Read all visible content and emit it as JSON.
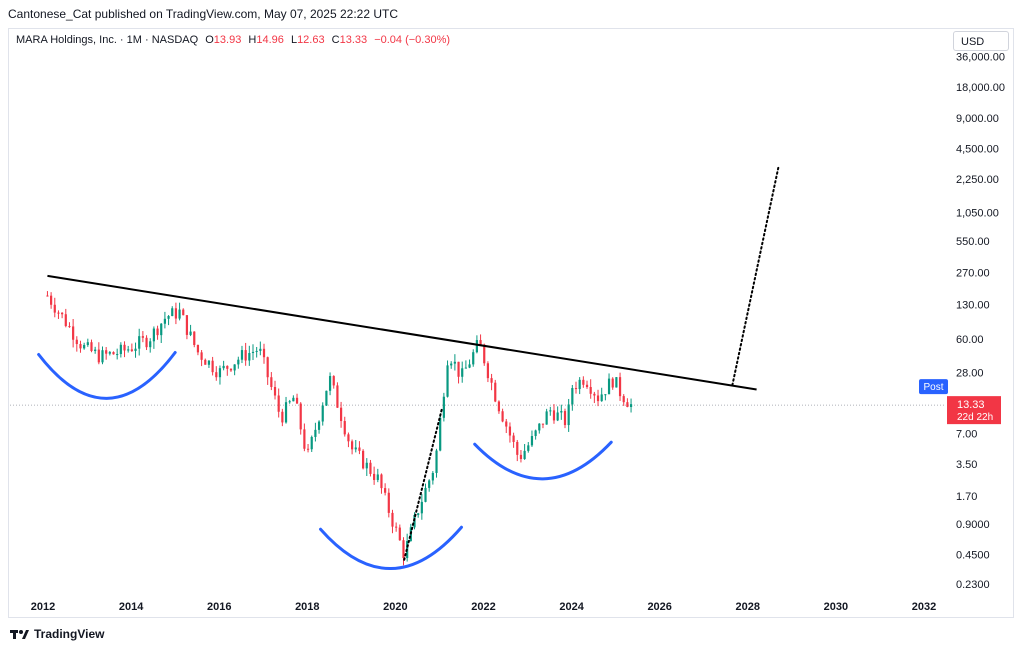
{
  "publish_line": "Cantonese_Cat published on TradingView.com, May 07, 2025 22:22 UTC",
  "legend": {
    "symbol": "MARA Holdings, Inc. · 1M · NASDAQ",
    "open_label": "O",
    "open": "13.93",
    "high_label": "H",
    "high": "14.96",
    "low_label": "L",
    "low": "12.63",
    "close_label": "C",
    "close": "13.33",
    "change": "−0.04 (−0.30%)"
  },
  "currency_button": "USD",
  "footer_logo_text": "TradingView",
  "price_tag": {
    "price": "13.33",
    "countdown": "22d 22h",
    "color": "#f23645"
  },
  "post_badge": {
    "label": "Post",
    "color": "#2962ff"
  },
  "colors": {
    "up": "#089981",
    "down": "#f23645",
    "trendline": "#000000",
    "cups": "#2962ff"
  },
  "chart_data": {
    "type": "candlestick",
    "symbol": "MARA",
    "interval": "1M",
    "yscale": "log",
    "x_ticks": [
      "2012",
      "2014",
      "2016",
      "2018",
      "2020",
      "2022",
      "2024",
      "2026",
      "2028",
      "2030",
      "2032"
    ],
    "y_ticks": [
      "36,000.00",
      "18,000.00",
      "9,000.00",
      "4,500.00",
      "2,250.00",
      "1,050.00",
      "550.00",
      "270.00",
      "130.00",
      "60.00",
      "28.00",
      "13.33",
      "7.00",
      "3.50",
      "1.70",
      "0.9000",
      "0.4500",
      "0.2300"
    ],
    "xlim": [
      2011.25,
      2032.5
    ],
    "ylim": [
      0.18,
      40000
    ],
    "last_price": 13.33,
    "anchors": [
      {
        "t": 2012.1,
        "p": 160
      },
      {
        "t": 2012.5,
        "p": 90
      },
      {
        "t": 2012.9,
        "p": 50
      },
      {
        "t": 2013.3,
        "p": 40
      },
      {
        "t": 2013.8,
        "p": 45
      },
      {
        "t": 2014.4,
        "p": 60
      },
      {
        "t": 2014.8,
        "p": 100
      },
      {
        "t": 2015.1,
        "p": 110
      },
      {
        "t": 2015.5,
        "p": 45
      },
      {
        "t": 2016.0,
        "p": 28
      },
      {
        "t": 2016.5,
        "p": 40
      },
      {
        "t": 2016.9,
        "p": 48
      },
      {
        "t": 2017.4,
        "p": 10
      },
      {
        "t": 2017.7,
        "p": 16
      },
      {
        "t": 2018.0,
        "p": 4
      },
      {
        "t": 2018.5,
        "p": 25
      },
      {
        "t": 2019.0,
        "p": 5
      },
      {
        "t": 2019.6,
        "p": 2.5
      },
      {
        "t": 2020.0,
        "p": 0.8
      },
      {
        "t": 2020.2,
        "p": 0.45
      },
      {
        "t": 2020.5,
        "p": 1.2
      },
      {
        "t": 2020.9,
        "p": 3.5
      },
      {
        "t": 2021.2,
        "p": 45
      },
      {
        "t": 2021.5,
        "p": 25
      },
      {
        "t": 2021.9,
        "p": 55
      },
      {
        "t": 2022.3,
        "p": 15
      },
      {
        "t": 2022.8,
        "p": 4
      },
      {
        "t": 2023.1,
        "p": 6
      },
      {
        "t": 2023.5,
        "p": 12
      },
      {
        "t": 2023.9,
        "p": 9
      },
      {
        "t": 2024.0,
        "p": 20
      },
      {
        "t": 2024.3,
        "p": 25
      },
      {
        "t": 2024.6,
        "p": 16
      },
      {
        "t": 2024.95,
        "p": 24
      },
      {
        "t": 2025.1,
        "p": 18
      },
      {
        "t": 2025.35,
        "p": 13.33
      }
    ],
    "trendline": [
      {
        "t": 2012.1,
        "p": 250
      },
      {
        "t": 2028.2,
        "p": 19
      }
    ],
    "projection_dotted": [
      {
        "t": 2027.65,
        "p": 21
      },
      {
        "t": 2028.7,
        "p": 3000
      }
    ],
    "rally_dotted": [
      {
        "t": 2020.2,
        "p": 0.4
      },
      {
        "t": 2021.05,
        "p": 12
      }
    ],
    "cups": [
      {
        "from": 2011.9,
        "to": 2015.0,
        "top_price": 42,
        "bottom_price": 11
      },
      {
        "from": 2018.3,
        "to": 2021.5,
        "top_price": 0.8,
        "bottom_price": 0.24
      },
      {
        "from": 2021.8,
        "to": 2024.9,
        "top_price": 5.5,
        "bottom_price": 1.9
      }
    ]
  }
}
